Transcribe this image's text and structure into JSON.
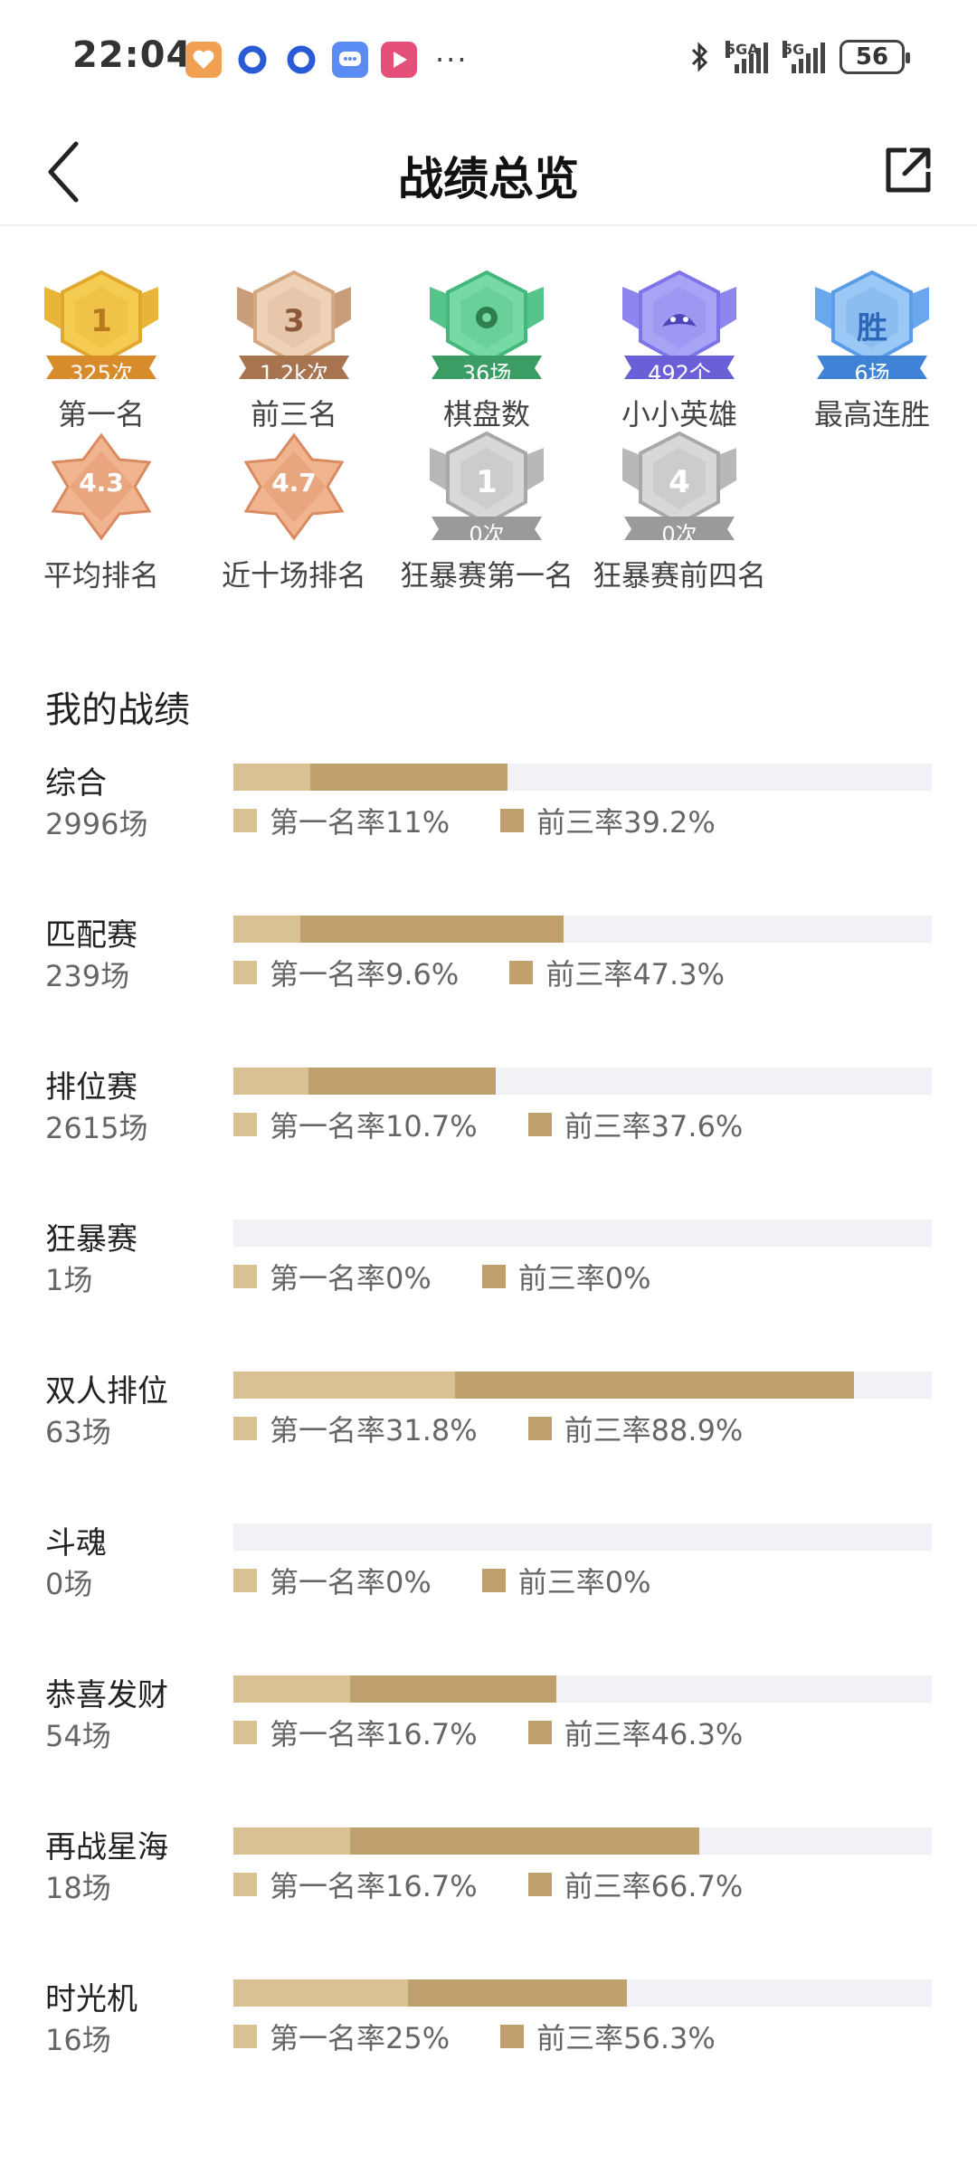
{
  "status_bar": {
    "time": "22:04",
    "network1": "5GA",
    "network2": "5G",
    "battery": "56",
    "more": "···"
  },
  "header": {
    "title": "战绩总览"
  },
  "badges": [
    {
      "label": "第一名",
      "value": "1",
      "sub": "325次",
      "color": "gold"
    },
    {
      "label": "前三名",
      "value": "3",
      "sub": "1.2k次",
      "color": "bronze"
    },
    {
      "label": "棋盘数",
      "value": "",
      "sub": "36场",
      "color": "green"
    },
    {
      "label": "小小英雄",
      "value": "",
      "sub": "492个",
      "color": "purple"
    },
    {
      "label": "最高连胜",
      "value": "胜",
      "sub": "6场",
      "color": "blue"
    },
    {
      "label": "平均排名",
      "value": "4.3",
      "sub": "",
      "color": "copper"
    },
    {
      "label": "近十场排名",
      "value": "4.7",
      "sub": "",
      "color": "copper"
    },
    {
      "label": "狂暴赛第一名",
      "value": "1",
      "sub": "0次",
      "color": "silver"
    },
    {
      "label": "狂暴赛前四名",
      "value": "4",
      "sub": "0次",
      "color": "silver"
    }
  ],
  "section": {
    "title": "我的战绩"
  },
  "stats": [
    {
      "name": "综合",
      "count": "2996场",
      "first_label": "第一名率11%",
      "top3_label": "前三率39.2%",
      "first": 11,
      "top3": 39.2
    },
    {
      "name": "匹配赛",
      "count": "239场",
      "first_label": "第一名率9.6%",
      "top3_label": "前三率47.3%",
      "first": 9.6,
      "top3": 47.3
    },
    {
      "name": "排位赛",
      "count": "2615场",
      "first_label": "第一名率10.7%",
      "top3_label": "前三率37.6%",
      "first": 10.7,
      "top3": 37.6
    },
    {
      "name": "狂暴赛",
      "count": "1场",
      "first_label": "第一名率0%",
      "top3_label": "前三率0%",
      "first": 0,
      "top3": 0
    },
    {
      "name": "双人排位",
      "count": "63场",
      "first_label": "第一名率31.8%",
      "top3_label": "前三率88.9%",
      "first": 31.8,
      "top3": 88.9
    },
    {
      "name": "斗魂",
      "count": "0场",
      "first_label": "第一名率0%",
      "top3_label": "前三率0%",
      "first": 0,
      "top3": 0
    },
    {
      "name": "恭喜发财",
      "count": "54场",
      "first_label": "第一名率16.7%",
      "top3_label": "前三率46.3%",
      "first": 16.7,
      "top3": 46.3
    },
    {
      "name": "再战星海",
      "count": "18场",
      "first_label": "第一名率16.7%",
      "top3_label": "前三率66.7%",
      "first": 16.7,
      "top3": 66.7
    },
    {
      "name": "时光机",
      "count": "16场",
      "first_label": "第一名率25%",
      "top3_label": "前三率56.3%",
      "first": 25,
      "top3": 56.3
    }
  ],
  "colors": {
    "first_rate": "#d8c293",
    "top3_rate": "#c0a06c",
    "track": "#f0f2f5"
  }
}
